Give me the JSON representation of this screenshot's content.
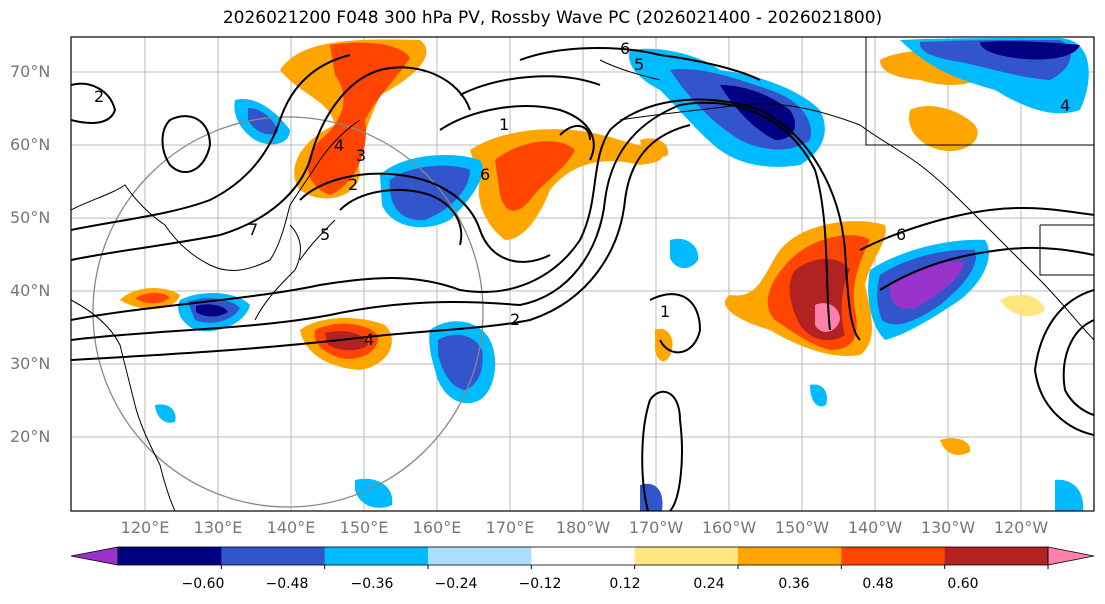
{
  "title": "2026021200 F048 300 hPa PV, Rossby Wave PC (2026021400 - 2026021800)",
  "lat_labels": [
    "70°N",
    "60°N",
    "50°N",
    "40°N",
    "30°N",
    "20°N"
  ],
  "lon_labels": [
    "120°E",
    "130°E",
    "140°E",
    "150°E",
    "160°E",
    "170°E",
    "180°W",
    "170°W",
    "160°W",
    "150°W",
    "140°W",
    "130°W",
    "120°W"
  ],
  "colorbar": {
    "ticks": [
      "−0.60",
      "−0.48",
      "−0.36",
      "−0.24",
      "−0.12",
      "0.12",
      "0.24",
      "0.36",
      "0.48",
      "0.60"
    ],
    "colors": [
      "#9933cc",
      "#000080",
      "#3355cc",
      "#00bbff",
      "#aaddff",
      "#ffffff",
      "#ffe680",
      "#ffa500",
      "#ff4500",
      "#b22222",
      "#ff80aa"
    ]
  },
  "contour_labels": [
    "6",
    "5",
    "4",
    "3",
    "2",
    "1",
    "7",
    "5",
    "6",
    "2",
    "1",
    "2",
    "4",
    "4",
    "6"
  ],
  "colors": {
    "neg1": "#3355cc",
    "neg2": "#00bbff",
    "neg3": "#000080",
    "pos1": "#ffa500",
    "pos2": "#ff4500",
    "pos3": "#b22222",
    "pos4": "#ff80aa"
  }
}
